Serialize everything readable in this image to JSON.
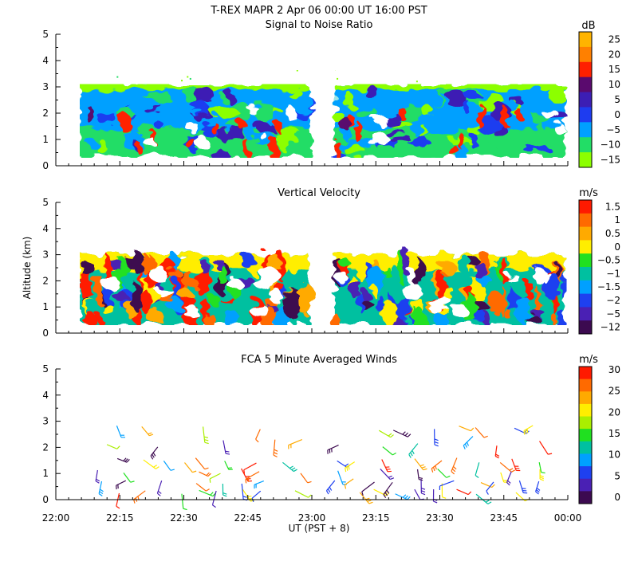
{
  "header": {
    "title": "T-REX   MAPR   2 Apr 06    00:00  UT    16:00    PST"
  },
  "chart_data": [
    {
      "type": "heatmap",
      "title": "Signal to Noise Ratio",
      "ylabel": "",
      "ylim": [
        0,
        5
      ],
      "y_ticks": [
        "0",
        "1",
        "2",
        "3",
        "4",
        "5"
      ],
      "colorbar": {
        "unit": "dB",
        "labels": [
          "25",
          "20",
          "15",
          "10",
          "5",
          "0",
          "−5",
          "−10",
          "−15"
        ],
        "colors": [
          "#ffb400",
          "#ff8000",
          "#ff2000",
          "#5a0a6e",
          "#3c1eb4",
          "#1e3cf0",
          "#00a0ff",
          "#22dd66",
          "#8cff00"
        ]
      }
    },
    {
      "type": "heatmap",
      "title": "Vertical Velocity",
      "ylabel": "Altitude  (km)",
      "ylim": [
        0,
        5
      ],
      "y_ticks": [
        "0",
        "1",
        "2",
        "3",
        "4",
        "5"
      ],
      "colorbar": {
        "unit": "m/s",
        "labels": [
          "1.5",
          "1",
          "0.5",
          "0",
          "−0.5",
          "−1",
          "−1.5",
          "−2",
          "−5",
          "−12"
        ],
        "colors": [
          "#ff1a00",
          "#ff6a00",
          "#ffaa00",
          "#ffee00",
          "#20e020",
          "#00c0a0",
          "#00a0ff",
          "#1e40f0",
          "#4a20b4",
          "#3c0a50"
        ]
      }
    },
    {
      "type": "wind_barbs",
      "title": "FCA 5 Minute Averaged Winds",
      "ylim": [
        0,
        5
      ],
      "y_ticks": [
        "0",
        "1",
        "2",
        "3",
        "4",
        "5"
      ],
      "x_ticks": [
        "22:00",
        "22:15",
        "22:30",
        "22:45",
        "23:00",
        "23:15",
        "23:30",
        "23:45",
        "00:00"
      ],
      "xlabel": "UT  (PST + 8)",
      "colorbar": {
        "unit": "m/s",
        "labels": [
          "30",
          "25",
          "20",
          "15",
          "10",
          "5",
          "0"
        ],
        "colors": [
          "#ff1a00",
          "#ff6a00",
          "#ffaa00",
          "#ffee00",
          "#aaee00",
          "#20e020",
          "#00c0a0",
          "#00a0ff",
          "#1e40f0",
          "#4a20b4",
          "#3c0a50"
        ]
      }
    }
  ]
}
